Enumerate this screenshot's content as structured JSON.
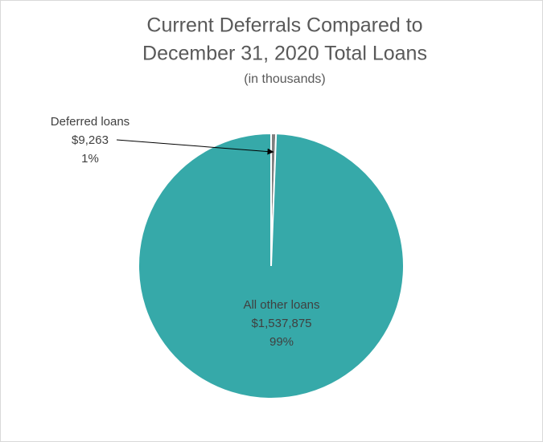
{
  "chart_data": {
    "type": "pie",
    "title": [
      "Current Deferrals Compared to",
      "December 31, 2020 Total Loans"
    ],
    "subtitle": "(in thousands)",
    "categories": [
      "Deferred loans",
      "All other loans"
    ],
    "values": [
      9263,
      1537875
    ],
    "value_labels": [
      "$9,263",
      "$1,537,875"
    ],
    "percent_labels": [
      "1%",
      "99%"
    ],
    "colors": [
      "#7f7f7f",
      "#36a9a9"
    ]
  }
}
